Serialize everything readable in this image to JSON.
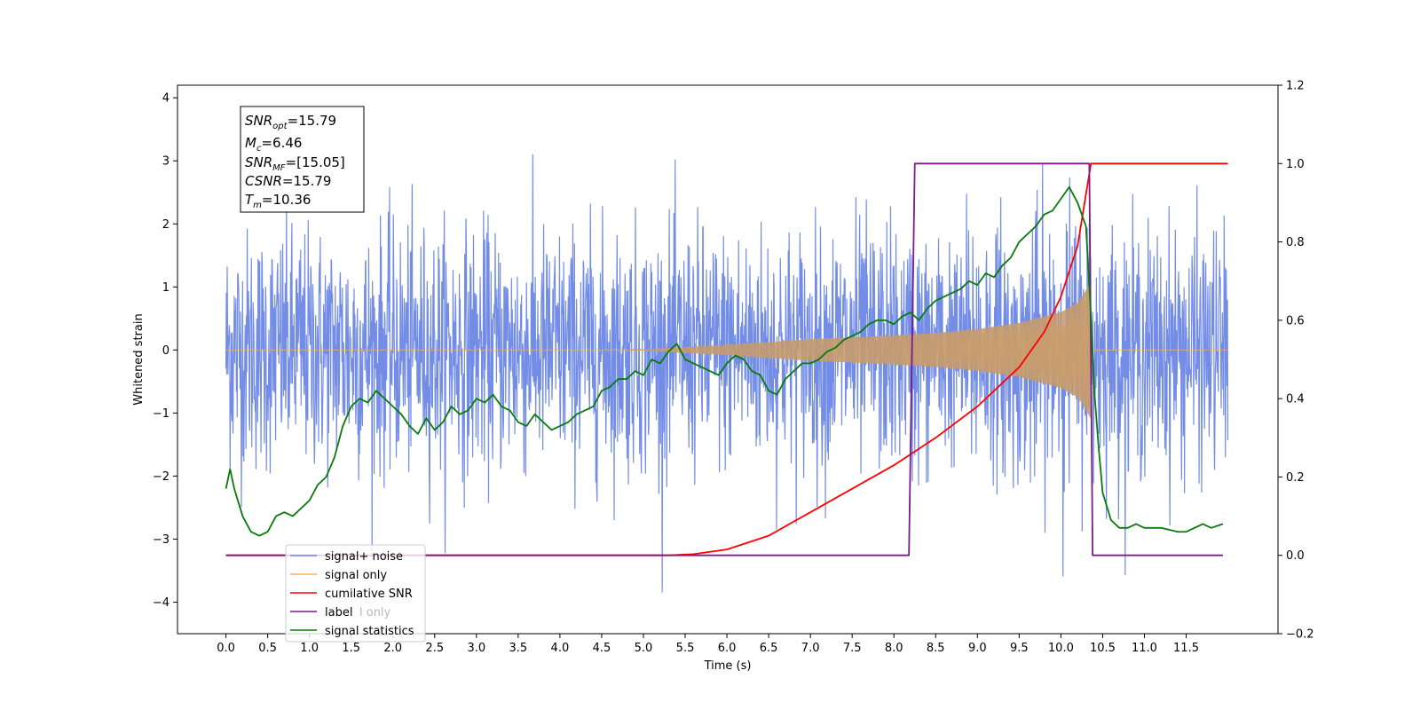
{
  "chart_data": {
    "type": "line",
    "title": "",
    "xlabel": "Time (s)",
    "ylabel": "Whitened strain",
    "xlim": [
      -0.58,
      12.6
    ],
    "ylim": [
      -4.5,
      4.2
    ],
    "y2lim": [
      -0.2,
      1.2
    ],
    "x_ticks": [
      "0.0",
      "0.5",
      "1.0",
      "1.5",
      "2.0",
      "2.5",
      "3.0",
      "3.5",
      "4.0",
      "4.5",
      "5.0",
      "5.5",
      "6.0",
      "6.5",
      "7.0",
      "7.5",
      "8.0",
      "8.5",
      "9.0",
      "9.5",
      "10.0",
      "10.5",
      "11.0",
      "11.5"
    ],
    "y_ticks": [
      "−4",
      "−3",
      "−2",
      "−1",
      "0",
      "1",
      "2",
      "3",
      "4"
    ],
    "y2_ticks": [
      "−0.2",
      "0.0",
      "0.2",
      "0.4",
      "0.6",
      "0.8",
      "1.0",
      "1.2"
    ],
    "grid": false,
    "legend_position": "lower-left",
    "info_box": {
      "lines": [
        {
          "main": "SNR",
          "sub": "opt",
          "value": "=15.79"
        },
        {
          "main": "M",
          "sub": "c",
          "value": "=6.46"
        },
        {
          "main": "SNR",
          "sub": "MF",
          "value": "=[15.05]"
        },
        {
          "main": "CSNR",
          "sub": "",
          "value": "=15.79"
        },
        {
          "main": "T",
          "sub": "m",
          "value": "=10.36"
        }
      ]
    },
    "series": [
      {
        "name": "signal+ noise",
        "color": "#6b87e6",
        "axis": "left",
        "x_range": [
          0.0,
          12.0
        ],
        "noise_sigma": 0.95,
        "peak_max": 3.8,
        "peak_min": -4.1
      },
      {
        "name": "signal only",
        "color": "#f5b25a",
        "axis": "left",
        "x_range": [
          0.0,
          12.0
        ],
        "envelope": {
          "x": [
            0.0,
            5.0,
            6.0,
            7.0,
            8.0,
            8.5,
            9.0,
            9.5,
            10.0,
            10.2,
            10.3,
            10.36
          ],
          "amp": [
            0.0,
            0.01,
            0.08,
            0.17,
            0.23,
            0.27,
            0.33,
            0.43,
            0.6,
            0.75,
            0.95,
            1.1
          ]
        }
      },
      {
        "name": "cumilative SNR",
        "color": "#ff0000",
        "axis": "right",
        "x": [
          0.0,
          5.3,
          5.6,
          6.0,
          6.5,
          7.0,
          7.5,
          8.0,
          8.5,
          9.0,
          9.5,
          9.8,
          10.0,
          10.2,
          10.36,
          12.0
        ],
        "values": [
          0.0,
          0.0,
          0.003,
          0.015,
          0.05,
          0.11,
          0.17,
          0.23,
          0.3,
          0.38,
          0.48,
          0.57,
          0.66,
          0.79,
          1.0,
          1.0
        ]
      },
      {
        "name": "label",
        "color": "#7b1a8a",
        "axis": "right",
        "x": [
          0.0,
          8.18,
          8.25,
          10.34,
          10.38,
          11.94
        ],
        "values": [
          0.0,
          0.0,
          1.0,
          1.0,
          0.0,
          0.0
        ]
      },
      {
        "name": "signal statistics",
        "color": "#0a7a0a",
        "axis": "right",
        "x": [
          0.0,
          0.05,
          0.1,
          0.2,
          0.3,
          0.4,
          0.5,
          0.6,
          0.7,
          0.8,
          0.9,
          1.0,
          1.1,
          1.2,
          1.3,
          1.4,
          1.5,
          1.6,
          1.7,
          1.8,
          1.9,
          2.0,
          2.1,
          2.2,
          2.3,
          2.4,
          2.5,
          2.6,
          2.7,
          2.8,
          2.9,
          3.0,
          3.1,
          3.2,
          3.3,
          3.4,
          3.5,
          3.6,
          3.7,
          3.8,
          3.9,
          4.0,
          4.1,
          4.2,
          4.3,
          4.4,
          4.5,
          4.6,
          4.7,
          4.8,
          4.9,
          5.0,
          5.1,
          5.2,
          5.3,
          5.4,
          5.5,
          5.6,
          5.7,
          5.8,
          5.9,
          6.0,
          6.1,
          6.2,
          6.3,
          6.4,
          6.5,
          6.6,
          6.7,
          6.8,
          6.9,
          7.0,
          7.1,
          7.2,
          7.3,
          7.4,
          7.5,
          7.6,
          7.7,
          7.8,
          7.9,
          8.0,
          8.1,
          8.2,
          8.3,
          8.4,
          8.5,
          8.6,
          8.7,
          8.8,
          8.9,
          9.0,
          9.1,
          9.2,
          9.3,
          9.4,
          9.5,
          9.6,
          9.7,
          9.8,
          9.9,
          10.0,
          10.1,
          10.2,
          10.3,
          10.35,
          10.4,
          10.45,
          10.5,
          10.6,
          10.7,
          10.8,
          10.9,
          11.0,
          11.2,
          11.4,
          11.5,
          11.6,
          11.7,
          11.8,
          11.94
        ],
        "values": [
          0.17,
          0.22,
          0.17,
          0.1,
          0.06,
          0.05,
          0.06,
          0.1,
          0.11,
          0.1,
          0.12,
          0.14,
          0.18,
          0.2,
          0.25,
          0.33,
          0.38,
          0.4,
          0.39,
          0.42,
          0.4,
          0.38,
          0.36,
          0.33,
          0.31,
          0.35,
          0.32,
          0.34,
          0.38,
          0.36,
          0.37,
          0.4,
          0.39,
          0.41,
          0.38,
          0.37,
          0.34,
          0.33,
          0.36,
          0.34,
          0.32,
          0.33,
          0.34,
          0.36,
          0.37,
          0.38,
          0.42,
          0.43,
          0.45,
          0.45,
          0.47,
          0.46,
          0.5,
          0.49,
          0.52,
          0.54,
          0.5,
          0.49,
          0.48,
          0.47,
          0.46,
          0.49,
          0.51,
          0.5,
          0.47,
          0.46,
          0.42,
          0.41,
          0.45,
          0.47,
          0.49,
          0.49,
          0.5,
          0.52,
          0.53,
          0.55,
          0.56,
          0.57,
          0.59,
          0.6,
          0.6,
          0.59,
          0.61,
          0.62,
          0.6,
          0.63,
          0.65,
          0.66,
          0.67,
          0.68,
          0.7,
          0.69,
          0.72,
          0.71,
          0.74,
          0.76,
          0.8,
          0.82,
          0.84,
          0.87,
          0.88,
          0.91,
          0.94,
          0.9,
          0.84,
          0.65,
          0.42,
          0.28,
          0.16,
          0.09,
          0.07,
          0.07,
          0.08,
          0.07,
          0.07,
          0.06,
          0.06,
          0.07,
          0.08,
          0.07,
          0.08
        ]
      }
    ],
    "legend_extra_partial_text": "l only"
  }
}
